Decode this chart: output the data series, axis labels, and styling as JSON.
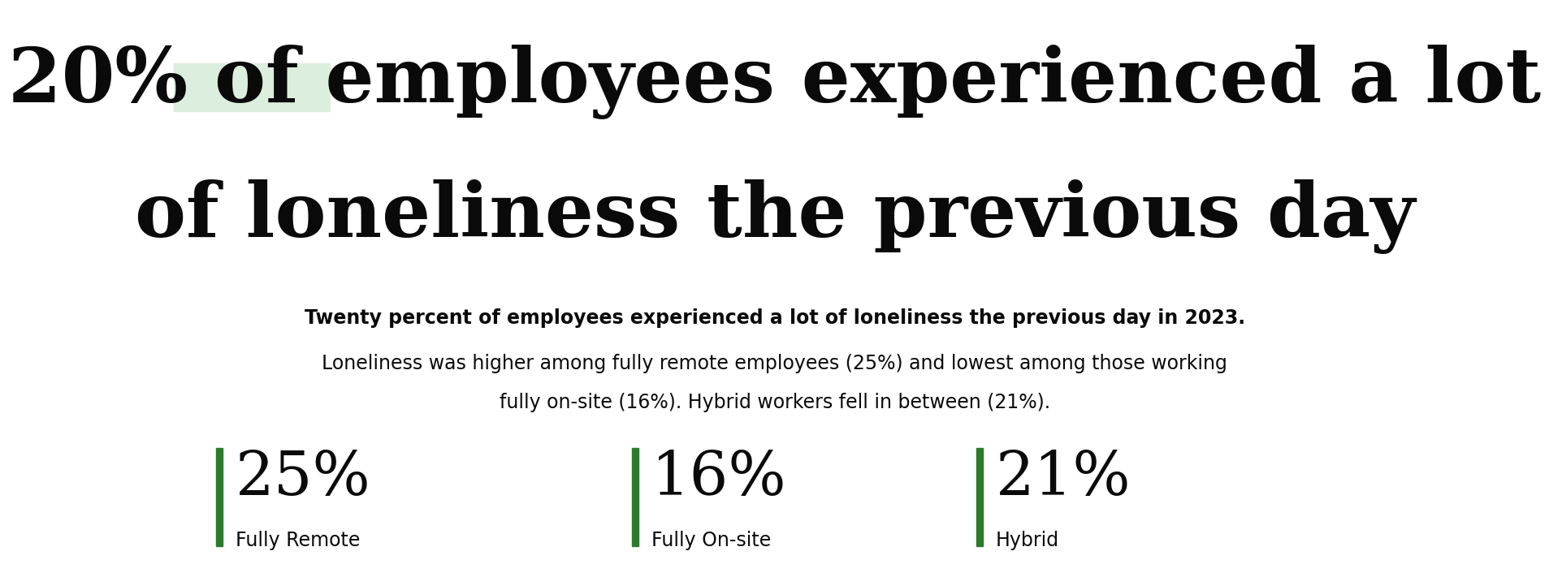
{
  "title_line1": "20% of employees experienced a lot",
  "title_line2": "of loneliness the previous day",
  "highlight_color": "#dceede",
  "title_fontsize": 68,
  "subtitle_bold": "Twenty percent of employees experienced a lot of loneliness the previous day in 2023",
  "body_line1": "Loneliness was higher among fully remote employees (25%) and lowest among those working",
  "body_line2": "fully on-site (16%). Hybrid workers fell in between (21%).",
  "subtitle_fontsize": 17,
  "body_fontsize": 17,
  "stats": [
    {
      "value": "25%",
      "label": "Fully Remote"
    },
    {
      "value": "16%",
      "label": "Fully On-site"
    },
    {
      "value": "21%",
      "label": "Hybrid"
    }
  ],
  "stat_value_fontsize": 54,
  "stat_label_fontsize": 17,
  "bar_color": "#2d7a2d",
  "background_color": "#ffffff",
  "text_color": "#0a0a0a"
}
